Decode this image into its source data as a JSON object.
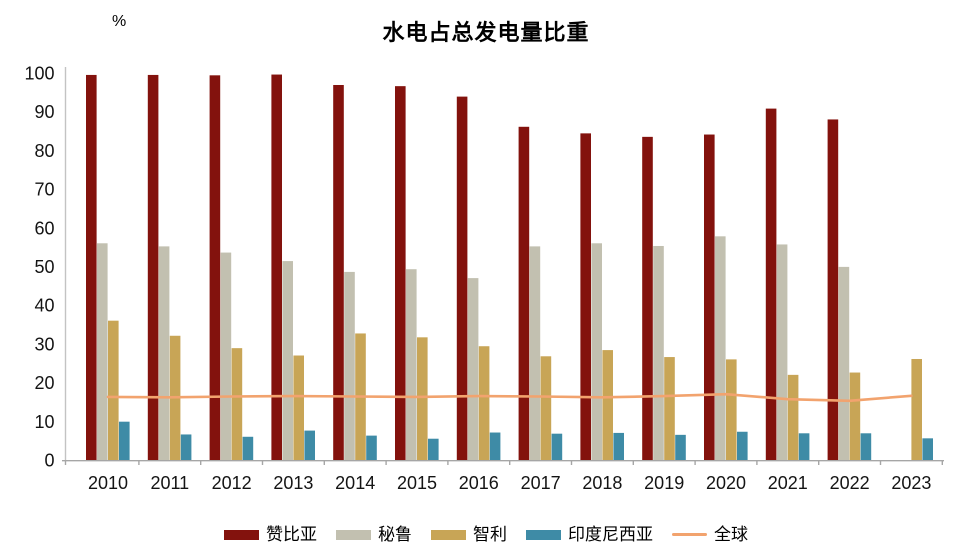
{
  "chart": {
    "title": "水电占总发电量比重",
    "y_unit": "%"
  },
  "chart_data": {
    "type": "bar",
    "title": "水电占总发电量比重",
    "ylabel": "%",
    "ylim": [
      0,
      100
    ],
    "yticks": [
      0,
      10,
      20,
      30,
      40,
      50,
      60,
      70,
      80,
      90,
      100
    ],
    "grid": false,
    "legend_position": "bottom",
    "categories": [
      "2010",
      "2011",
      "2012",
      "2013",
      "2014",
      "2015",
      "2016",
      "2017",
      "2018",
      "2019",
      "2020",
      "2021",
      "2022",
      "2023"
    ],
    "series": [
      {
        "name": "赞比亚",
        "type": "bar",
        "color": "#83120D",
        "values": [
          99.5,
          99.5,
          99.4,
          99.6,
          96.9,
          96.6,
          93.9,
          86.1,
          84.4,
          83.5,
          84.1,
          90.8,
          88.0,
          null
        ]
      },
      {
        "name": "秘鲁",
        "type": "bar",
        "color": "#C2C0B0",
        "values": [
          56.0,
          55.2,
          53.6,
          51.4,
          48.6,
          49.3,
          47.0,
          55.2,
          56.0,
          55.3,
          57.8,
          55.7,
          49.9,
          null
        ]
      },
      {
        "name": "智利",
        "type": "bar",
        "color": "#C8A556",
        "values": [
          36.0,
          32.1,
          28.9,
          27.0,
          32.7,
          31.7,
          29.4,
          26.8,
          28.4,
          26.6,
          26.0,
          22.0,
          22.6,
          26.1
        ]
      },
      {
        "name": "印度尼西亚",
        "type": "bar",
        "color": "#3E8BA6",
        "values": [
          9.9,
          6.6,
          6.0,
          7.6,
          6.3,
          5.5,
          7.1,
          6.8,
          7.0,
          6.5,
          7.3,
          6.9,
          6.9,
          5.6
        ]
      },
      {
        "name": "全球",
        "type": "line",
        "color": "#F2A36E",
        "values": [
          16.3,
          16.2,
          16.4,
          16.5,
          16.4,
          16.3,
          16.5,
          16.4,
          16.2,
          16.5,
          17.0,
          15.7,
          15.3,
          16.6
        ]
      }
    ],
    "axis_color": "#A6A6A6"
  }
}
